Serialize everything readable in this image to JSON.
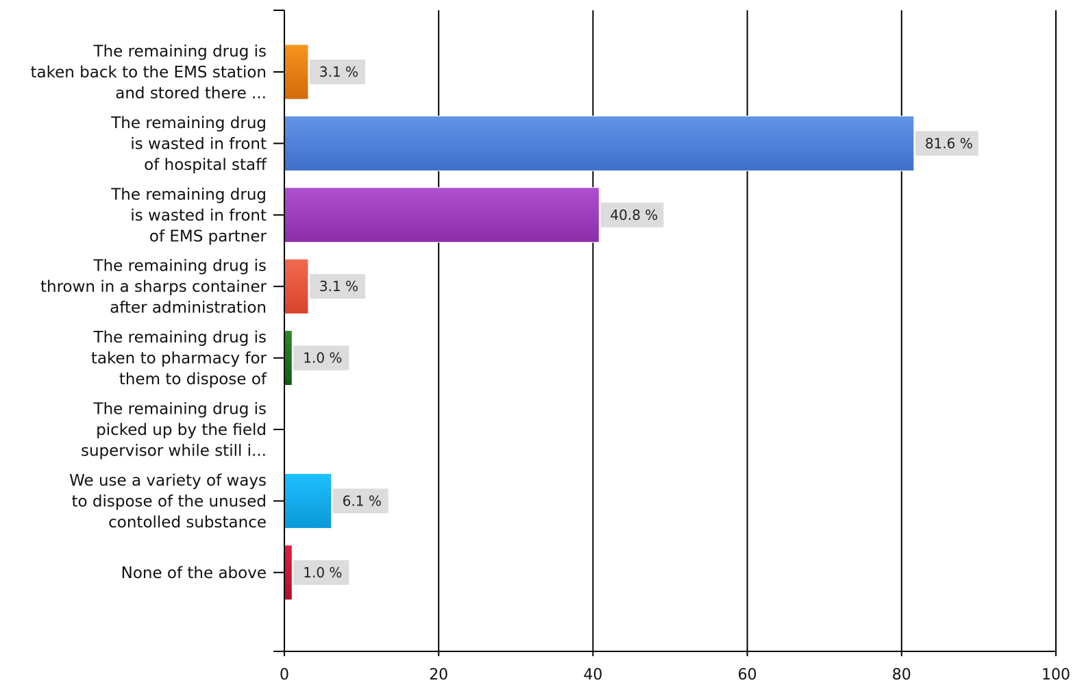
{
  "chart_data": {
    "type": "bar",
    "orientation": "horizontal",
    "title": "",
    "xlabel": "",
    "ylabel": "",
    "xlim": [
      0,
      100
    ],
    "x_ticks": [
      "0",
      "20",
      "40",
      "60",
      "80",
      "100"
    ],
    "grid": "vertical lines at major ticks",
    "legend": "none",
    "categories": [
      {
        "lines": [
          "The remaining drug is",
          "taken back to the EMS station",
          "and stored there ..."
        ]
      },
      {
        "lines": [
          "The remaining drug",
          "is wasted in front",
          "of hospital staff"
        ]
      },
      {
        "lines": [
          "The remaining drug",
          "is wasted in front",
          "of EMS partner"
        ]
      },
      {
        "lines": [
          "The remaining drug is",
          "thrown in a sharps container",
          "after administration"
        ]
      },
      {
        "lines": [
          "The remaining drug is",
          "taken to pharmacy for",
          "them to dispose of"
        ]
      },
      {
        "lines": [
          "The remaining drug is",
          "picked up by the field",
          "supervisor while still i..."
        ]
      },
      {
        "lines": [
          "We use a variety of ways",
          "to dispose of the unused",
          "contolled substance"
        ]
      },
      {
        "lines": [
          "None of the above"
        ]
      }
    ],
    "values": [
      3.1,
      81.6,
      40.8,
      3.1,
      1.0,
      0,
      6.1,
      1.0
    ],
    "value_labels": [
      "3.1 %",
      "81.6 %",
      "40.8 %",
      "3.1 %",
      "1.0 %",
      "",
      "6.1 %",
      "1.0 %"
    ],
    "colors": [
      [
        "#f7941d",
        "#d46a0a"
      ],
      [
        "#6394e8",
        "#3f6fc9"
      ],
      [
        "#b04fd0",
        "#8b2ea8"
      ],
      [
        "#f26a4f",
        "#d8432b"
      ],
      [
        "#2a8a2a",
        "#0f5e0f"
      ],
      [
        "#999999",
        "#777777"
      ],
      [
        "#1ec0ff",
        "#0b98d8"
      ],
      [
        "#e0203c",
        "#b00f2a"
      ]
    ]
  }
}
